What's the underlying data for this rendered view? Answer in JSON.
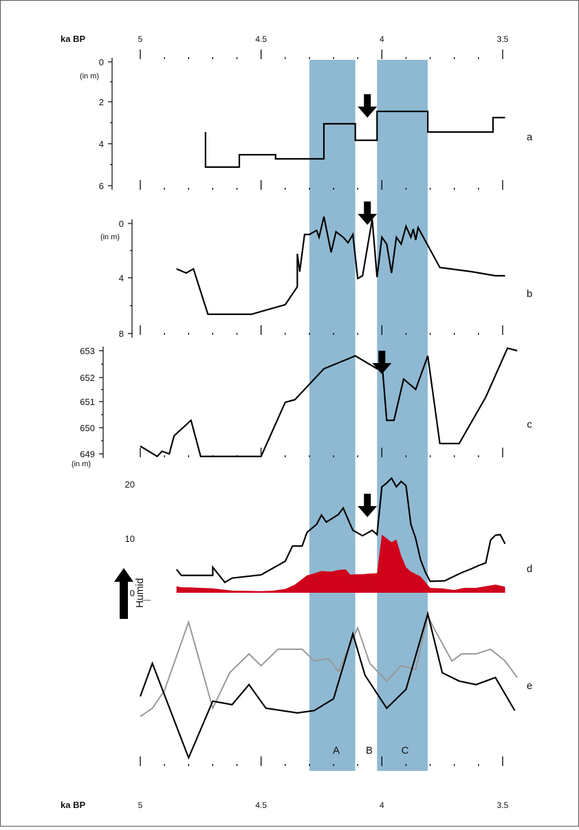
{
  "axis": {
    "title": "ka BP",
    "ticks": [
      5,
      4.5,
      4,
      3.5
    ],
    "tick_labels": [
      "5",
      "4.5",
      "4",
      "3.5"
    ]
  },
  "bands": [
    {
      "label": "A",
      "from": 4.3,
      "to": 4.11,
      "color": "#8fb9d2"
    },
    {
      "label": "B",
      "from": 4.11,
      "to": 4.02,
      "color": "#ffffff"
    },
    {
      "label": "C",
      "from": 4.02,
      "to": 3.81,
      "color": "#8fb9d2"
    }
  ],
  "chart_data": [
    {
      "type": "line",
      "panel": "a",
      "ylabel_unit": "(in m)",
      "y_ticks": [
        "0",
        "2",
        "4",
        "6"
      ],
      "ylim": [
        0,
        6
      ],
      "inverted": true,
      "step": true,
      "arrow_at": 4.06,
      "series": [
        {
          "color": "#000000",
          "x": [
            4.73,
            4.73,
            4.59,
            4.59,
            4.44,
            4.44,
            4.24,
            4.24,
            4.11,
            4.11,
            4.02,
            4.02,
            3.81,
            3.81,
            3.54,
            3.54,
            3.49
          ],
          "y": [
            3.4,
            5.1,
            5.1,
            4.5,
            4.5,
            4.7,
            4.7,
            3.0,
            3.0,
            3.8,
            3.8,
            2.4,
            2.4,
            3.4,
            3.4,
            2.7,
            2.7
          ]
        }
      ]
    },
    {
      "type": "line",
      "panel": "b",
      "ylabel_unit": "(in m)",
      "y_ticks": [
        "0",
        "4",
        "8"
      ],
      "ylim": [
        0,
        8
      ],
      "inverted": true,
      "arrow_at": 4.06,
      "series": [
        {
          "color": "#000000",
          "x": [
            4.85,
            4.81,
            4.78,
            4.72,
            4.54,
            4.4,
            4.35,
            4.35,
            4.34,
            4.32,
            4.3,
            4.27,
            4.26,
            4.24,
            4.21,
            4.19,
            4.16,
            4.14,
            4.12,
            4.1,
            4.08,
            4.04,
            4.02,
            4.0,
            3.98,
            3.96,
            3.94,
            3.92,
            3.9,
            3.88,
            3.87,
            3.86,
            3.85,
            3.76,
            3.63,
            3.53,
            3.49
          ],
          "y": [
            3.3,
            3.6,
            3.3,
            6.6,
            6.6,
            5.9,
            4.6,
            2.2,
            3.5,
            0.8,
            0.8,
            0.5,
            1.0,
            -0.5,
            2.1,
            0.6,
            1.0,
            1.4,
            0.8,
            4.0,
            3.8,
            -0.3,
            3.9,
            1.0,
            1.5,
            3.6,
            1.0,
            1.5,
            0.2,
            1.0,
            0.4,
            1.2,
            0.3,
            3.2,
            3.5,
            3.8,
            3.8
          ]
        }
      ]
    },
    {
      "type": "line",
      "panel": "c",
      "ylabel_unit": "(in m)",
      "y_ticks": [
        "653",
        "652",
        "651",
        "650",
        "649"
      ],
      "ylim": [
        649,
        653
      ],
      "arrow_at": 4.0,
      "series": [
        {
          "color": "#000000",
          "x": [
            5.0,
            4.93,
            4.91,
            4.88,
            4.86,
            4.79,
            4.75,
            4.5,
            4.4,
            4.36,
            4.24,
            4.11,
            4.02,
            4.0,
            3.98,
            3.95,
            3.91,
            3.86,
            3.81,
            3.76,
            3.68,
            3.57,
            3.48,
            3.44
          ],
          "y": [
            649.3,
            648.9,
            649.1,
            649.0,
            649.7,
            650.3,
            648.9,
            648.9,
            651.0,
            651.1,
            652.3,
            652.8,
            652.3,
            652.6,
            650.3,
            650.3,
            651.9,
            651.5,
            652.8,
            649.4,
            649.4,
            651.2,
            653.1,
            653.0
          ]
        }
      ]
    },
    {
      "type": "area",
      "panel": "d",
      "y_ticks": [
        "20",
        "10",
        "0"
      ],
      "ylim": [
        0,
        20
      ],
      "arrow_at": 4.06,
      "series": [
        {
          "color": "#000000",
          "x": [
            4.85,
            4.83,
            4.7,
            4.7,
            4.65,
            4.62,
            4.5,
            4.44,
            4.4,
            4.37,
            4.33,
            4.31,
            4.27,
            4.25,
            4.23,
            4.18,
            4.16,
            4.14,
            4.12,
            4.08,
            4.04,
            4.02,
            4.0,
            3.98,
            3.96,
            3.94,
            3.92,
            3.9,
            3.88,
            3.86,
            3.84,
            3.82,
            3.8,
            3.74,
            3.67,
            3.63,
            3.6,
            3.57,
            3.55,
            3.53,
            3.51,
            3.49
          ],
          "y": [
            4.3,
            3.2,
            3.2,
            4.7,
            1.9,
            2.7,
            3.3,
            4.8,
            5.8,
            8.6,
            8.6,
            11.1,
            12.6,
            14.3,
            13.0,
            14.4,
            15.6,
            13.5,
            11.5,
            10.5,
            11.5,
            10.7,
            19.5,
            20.2,
            21.1,
            19.5,
            20.5,
            19.7,
            12.6,
            10.0,
            6.1,
            3.8,
            2.1,
            2.2,
            3.7,
            4.4,
            5.0,
            5.5,
            9.7,
            10.6,
            10.7,
            9.0
          ]
        },
        {
          "color": "#d0021b",
          "fill": true,
          "x": [
            4.85,
            4.83,
            4.8,
            4.7,
            4.62,
            4.5,
            4.45,
            4.4,
            4.36,
            4.31,
            4.27,
            4.25,
            4.21,
            4.18,
            4.15,
            4.13,
            4.11,
            4.08,
            4.06,
            4.02,
            4.0,
            3.98,
            3.96,
            3.94,
            3.92,
            3.9,
            3.88,
            3.84,
            3.8,
            3.75,
            3.7,
            3.66,
            3.61,
            3.57,
            3.53,
            3.49
          ],
          "y": [
            1.2,
            1.0,
            1.0,
            0.8,
            0.4,
            0.3,
            0.4,
            0.7,
            1.5,
            3.2,
            3.7,
            4.0,
            3.9,
            4.2,
            4.3,
            3.3,
            3.4,
            3.4,
            3.5,
            3.6,
            10.7,
            10.0,
            9.3,
            9.8,
            6.8,
            4.7,
            3.9,
            3.0,
            0.9,
            0.8,
            0.5,
            0.9,
            0.9,
            1.2,
            1.5,
            1.1
          ]
        }
      ]
    },
    {
      "type": "line",
      "panel": "e",
      "ylabel": "Humid",
      "series": [
        {
          "color": "#999999",
          "x": [
            5.0,
            4.95,
            4.9,
            4.8,
            4.7,
            4.63,
            4.55,
            4.5,
            4.43,
            4.33,
            4.28,
            4.22,
            4.18,
            4.13,
            4.1,
            4.05,
            3.98,
            3.92,
            3.86,
            3.81,
            3.78,
            3.71,
            3.67,
            3.61,
            3.55,
            3.49,
            3.44
          ],
          "y": [
            0.15,
            0.22,
            0.37,
            0.95,
            0.22,
            0.52,
            0.68,
            0.58,
            0.72,
            0.72,
            0.62,
            0.64,
            0.53,
            0.77,
            0.9,
            0.6,
            0.45,
            0.58,
            0.55,
            1.0,
            0.88,
            0.62,
            0.68,
            0.68,
            0.72,
            0.62,
            0.48
          ]
        },
        {
          "color": "#000000",
          "x": [
            5.0,
            4.95,
            4.8,
            4.7,
            4.62,
            4.55,
            4.48,
            4.35,
            4.28,
            4.2,
            4.12,
            4.07,
            3.98,
            3.9,
            3.81,
            3.75,
            3.68,
            3.61,
            3.53,
            3.45
          ],
          "y": [
            0.32,
            0.6,
            -0.2,
            0.28,
            0.25,
            0.42,
            0.22,
            0.18,
            0.2,
            0.3,
            0.85,
            0.5,
            0.22,
            0.38,
            1.02,
            0.52,
            0.45,
            0.42,
            0.48,
            0.2
          ]
        }
      ]
    }
  ],
  "panel_letters": [
    "a",
    "b",
    "c",
    "d",
    "e"
  ]
}
